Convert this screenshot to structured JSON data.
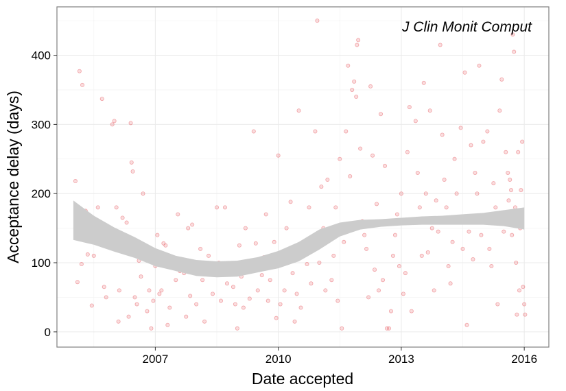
{
  "chart_data": {
    "type": "scatter",
    "annotation": "J Clin Monit Comput",
    "xlabel": "Date accepted",
    "ylabel": "Acceptance delay (days)",
    "xlim": [
      2004.6,
      2016.6
    ],
    "ylim": [
      -22,
      470
    ],
    "x_ticks": [
      2007,
      2010,
      2013,
      2016
    ],
    "x_tick_labels": [
      "2007",
      "2010",
      "2013",
      "2016"
    ],
    "y_ticks": [
      0,
      100,
      200,
      300,
      400
    ],
    "y_tick_labels": [
      "0",
      "100",
      "200",
      "300",
      "400"
    ],
    "grid": true,
    "legend": "none",
    "point_color": "#e8626a",
    "ribbon_color": "#cccccc",
    "smooth_band": {
      "x": [
        2005.0,
        2005.5,
        2006.0,
        2006.5,
        2007.0,
        2007.5,
        2008.0,
        2008.5,
        2009.0,
        2009.5,
        2010.0,
        2010.5,
        2011.0,
        2011.5,
        2012.0,
        2012.5,
        2013.0,
        2013.5,
        2014.0,
        2014.5,
        2015.0,
        2015.5,
        2016.0
      ],
      "lower": [
        133,
        126,
        116,
        107,
        95,
        88,
        81,
        79,
        80,
        86,
        92,
        102,
        119,
        138,
        148,
        152,
        154,
        155,
        155,
        155,
        155,
        153,
        148
      ],
      "upper": [
        190,
        168,
        151,
        137,
        121,
        110,
        104,
        102,
        103,
        108,
        117,
        130,
        148,
        158,
        162,
        163,
        165,
        167,
        168,
        170,
        172,
        176,
        180
      ]
    },
    "points": [
      [
        2005.05,
        218
      ],
      [
        2005.1,
        72
      ],
      [
        2005.15,
        377
      ],
      [
        2005.22,
        357
      ],
      [
        2005.3,
        175
      ],
      [
        2005.2,
        98
      ],
      [
        2005.12,
        135
      ],
      [
        2005.25,
        160
      ],
      [
        2005.35,
        112
      ],
      [
        2005.45,
        38
      ],
      [
        2005.5,
        110
      ],
      [
        2005.6,
        180
      ],
      [
        2005.7,
        337
      ],
      [
        2005.75,
        65
      ],
      [
        2005.8,
        50
      ],
      [
        2005.9,
        145
      ],
      [
        2005.95,
        300
      ],
      [
        2006.0,
        305
      ],
      [
        2006.05,
        180
      ],
      [
        2006.1,
        15
      ],
      [
        2006.12,
        60
      ],
      [
        2006.2,
        165
      ],
      [
        2006.25,
        130
      ],
      [
        2006.3,
        158
      ],
      [
        2006.35,
        22
      ],
      [
        2006.4,
        302
      ],
      [
        2006.42,
        245
      ],
      [
        2006.45,
        232
      ],
      [
        2006.5,
        50
      ],
      [
        2006.55,
        40
      ],
      [
        2006.6,
        103
      ],
      [
        2006.65,
        80
      ],
      [
        2006.7,
        200
      ],
      [
        2006.8,
        30
      ],
      [
        2006.85,
        60
      ],
      [
        2006.9,
        5
      ],
      [
        2006.95,
        45
      ],
      [
        2007.0,
        95
      ],
      [
        2007.05,
        140
      ],
      [
        2007.1,
        55
      ],
      [
        2007.15,
        60
      ],
      [
        2007.2,
        128
      ],
      [
        2007.25,
        125
      ],
      [
        2007.3,
        10
      ],
      [
        2007.35,
        35
      ],
      [
        2007.4,
        100
      ],
      [
        2007.5,
        75
      ],
      [
        2007.55,
        170
      ],
      [
        2007.6,
        88
      ],
      [
        2007.7,
        85
      ],
      [
        2007.75,
        22
      ],
      [
        2007.8,
        150
      ],
      [
        2007.85,
        52
      ],
      [
        2007.9,
        155
      ],
      [
        2008.0,
        40
      ],
      [
        2008.05,
        95
      ],
      [
        2008.1,
        120
      ],
      [
        2008.15,
        75
      ],
      [
        2008.2,
        15
      ],
      [
        2008.3,
        110
      ],
      [
        2008.35,
        90
      ],
      [
        2008.4,
        55
      ],
      [
        2008.45,
        85
      ],
      [
        2008.5,
        180
      ],
      [
        2008.55,
        100
      ],
      [
        2008.6,
        45
      ],
      [
        2008.7,
        180
      ],
      [
        2008.75,
        70
      ],
      [
        2008.8,
        92
      ],
      [
        2008.9,
        65
      ],
      [
        2008.95,
        40
      ],
      [
        2009.0,
        5
      ],
      [
        2009.05,
        125
      ],
      [
        2009.1,
        80
      ],
      [
        2009.15,
        35
      ],
      [
        2009.2,
        150
      ],
      [
        2009.3,
        48
      ],
      [
        2009.35,
        100
      ],
      [
        2009.4,
        290
      ],
      [
        2009.45,
        128
      ],
      [
        2009.5,
        60
      ],
      [
        2009.6,
        82
      ],
      [
        2009.65,
        108
      ],
      [
        2009.7,
        170
      ],
      [
        2009.75,
        45
      ],
      [
        2009.8,
        75
      ],
      [
        2009.9,
        130
      ],
      [
        2009.95,
        20
      ],
      [
        2010.0,
        255
      ],
      [
        2010.05,
        40
      ],
      [
        2010.1,
        100
      ],
      [
        2010.15,
        60
      ],
      [
        2010.2,
        150
      ],
      [
        2010.3,
        188
      ],
      [
        2010.35,
        85
      ],
      [
        2010.4,
        15
      ],
      [
        2010.45,
        55
      ],
      [
        2010.5,
        320
      ],
      [
        2010.55,
        35
      ],
      [
        2010.6,
        130
      ],
      [
        2010.7,
        98
      ],
      [
        2010.75,
        180
      ],
      [
        2010.8,
        70
      ],
      [
        2010.9,
        290
      ],
      [
        2010.95,
        450
      ],
      [
        2011.0,
        100
      ],
      [
        2011.05,
        210
      ],
      [
        2011.1,
        150
      ],
      [
        2011.15,
        60
      ],
      [
        2011.2,
        220
      ],
      [
        2011.3,
        75
      ],
      [
        2011.35,
        110
      ],
      [
        2011.4,
        180
      ],
      [
        2011.45,
        45
      ],
      [
        2011.5,
        250
      ],
      [
        2011.55,
        5
      ],
      [
        2011.6,
        130
      ],
      [
        2011.65,
        290
      ],
      [
        2011.7,
        385
      ],
      [
        2011.75,
        225
      ],
      [
        2011.8,
        350
      ],
      [
        2011.85,
        362
      ],
      [
        2011.9,
        340
      ],
      [
        2011.92,
        415
      ],
      [
        2011.95,
        422
      ],
      [
        2012.0,
        265
      ],
      [
        2012.05,
        160
      ],
      [
        2012.1,
        140
      ],
      [
        2012.15,
        120
      ],
      [
        2012.2,
        50
      ],
      [
        2012.25,
        355
      ],
      [
        2012.3,
        255
      ],
      [
        2012.35,
        90
      ],
      [
        2012.4,
        185
      ],
      [
        2012.45,
        60
      ],
      [
        2012.5,
        315
      ],
      [
        2012.55,
        75
      ],
      [
        2012.6,
        240
      ],
      [
        2012.65,
        5
      ],
      [
        2012.7,
        5
      ],
      [
        2012.75,
        30
      ],
      [
        2012.8,
        110
      ],
      [
        2012.85,
        140
      ],
      [
        2012.9,
        170
      ],
      [
        2012.95,
        95
      ],
      [
        2013.0,
        200
      ],
      [
        2013.05,
        55
      ],
      [
        2013.1,
        85
      ],
      [
        2013.15,
        260
      ],
      [
        2013.2,
        325
      ],
      [
        2013.25,
        30
      ],
      [
        2013.3,
        160
      ],
      [
        2013.35,
        305
      ],
      [
        2013.4,
        230
      ],
      [
        2013.45,
        180
      ],
      [
        2013.5,
        110
      ],
      [
        2013.55,
        360
      ],
      [
        2013.6,
        200
      ],
      [
        2013.65,
        115
      ],
      [
        2013.7,
        320
      ],
      [
        2013.75,
        150
      ],
      [
        2013.8,
        60
      ],
      [
        2013.85,
        190
      ],
      [
        2013.9,
        145
      ],
      [
        2013.95,
        415
      ],
      [
        2014.0,
        285
      ],
      [
        2014.05,
        220
      ],
      [
        2014.1,
        180
      ],
      [
        2014.15,
        95
      ],
      [
        2014.2,
        70
      ],
      [
        2014.25,
        130
      ],
      [
        2014.3,
        250
      ],
      [
        2014.35,
        200
      ],
      [
        2014.4,
        160
      ],
      [
        2014.45,
        295
      ],
      [
        2014.5,
        120
      ],
      [
        2014.55,
        375
      ],
      [
        2014.6,
        10
      ],
      [
        2014.65,
        145
      ],
      [
        2014.7,
        270
      ],
      [
        2014.75,
        105
      ],
      [
        2014.8,
        230
      ],
      [
        2014.85,
        200
      ],
      [
        2014.9,
        385
      ],
      [
        2014.95,
        140
      ],
      [
        2015.0,
        275
      ],
      [
        2015.05,
        165
      ],
      [
        2015.1,
        290
      ],
      [
        2015.15,
        120
      ],
      [
        2015.2,
        95
      ],
      [
        2015.25,
        215
      ],
      [
        2015.3,
        180
      ],
      [
        2015.35,
        40
      ],
      [
        2015.4,
        320
      ],
      [
        2015.45,
        365
      ],
      [
        2015.5,
        145
      ],
      [
        2015.55,
        260
      ],
      [
        2015.6,
        230
      ],
      [
        2015.62,
        190
      ],
      [
        2015.65,
        220
      ],
      [
        2015.68,
        205
      ],
      [
        2015.7,
        140
      ],
      [
        2015.72,
        430
      ],
      [
        2015.75,
        405
      ],
      [
        2015.78,
        180
      ],
      [
        2015.8,
        100
      ],
      [
        2015.82,
        25
      ],
      [
        2015.85,
        260
      ],
      [
        2015.88,
        60
      ],
      [
        2015.9,
        150
      ],
      [
        2015.92,
        205
      ],
      [
        2015.95,
        275
      ],
      [
        2015.97,
        65
      ],
      [
        2016.0,
        40
      ],
      [
        2016.02,
        25
      ]
    ]
  }
}
